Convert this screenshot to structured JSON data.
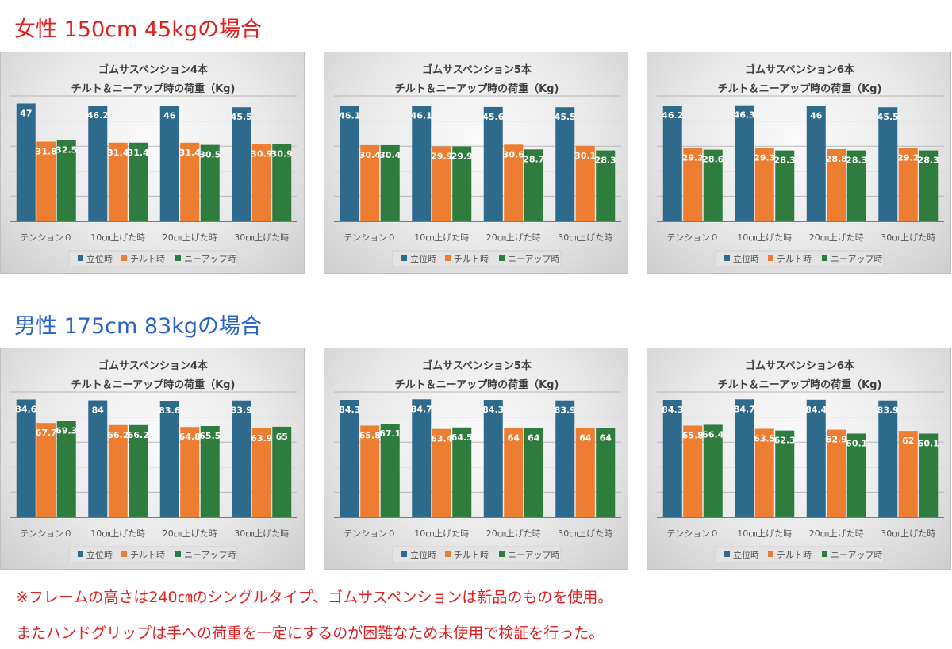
{
  "colors": {
    "standing": "#2e6a8c",
    "tilt": "#ed7d31",
    "knee": "#2e7d3e",
    "female_title": "#e02020",
    "male_title": "#2a62c9",
    "footnote": "#e02020"
  },
  "sections": [
    {
      "title": "女性 150cm 45kgの場合"
    },
    {
      "title": "男性 175cm 83kgの場合"
    }
  ],
  "footnotes": [
    "※フレームの高さは240㎝のシングルタイプ、ゴムサスペンションは新品のものを使用。",
    "またハンドグリップは手への荷重を一定にするのが困難なため未使用で検証を行った。"
  ],
  "chart_data": [
    {
      "type": "bar",
      "title": "ゴムサスペンション4本",
      "subtitle": "チルト＆ニーアップ時の荷重（Kg)",
      "categories": [
        "テンション０",
        "10㎝上げた時",
        "20㎝上げた時",
        "30㎝上げた時"
      ],
      "series": [
        {
          "name": "立位時",
          "values": [
            47,
            46.2,
            46,
            45.5
          ]
        },
        {
          "name": "チルト時",
          "values": [
            31.8,
            31.4,
            31.4,
            30.9
          ]
        },
        {
          "name": "ニーアップ時",
          "values": [
            32.5,
            31.4,
            30.5,
            30.9
          ]
        }
      ],
      "ylim": [
        0,
        50
      ],
      "grid": true,
      "legend": "bottom"
    },
    {
      "type": "bar",
      "title": "ゴムサスペンション5本",
      "subtitle": "チルト＆ニーアップ時の荷重（Kg)",
      "categories": [
        "テンション０",
        "10㎝上げた時",
        "20㎝上げた時",
        "30㎝上げた時"
      ],
      "series": [
        {
          "name": "立位時",
          "values": [
            46.1,
            46.1,
            45.6,
            45.5
          ]
        },
        {
          "name": "チルト時",
          "values": [
            30.4,
            29.9,
            30.6,
            30.1
          ]
        },
        {
          "name": "ニーアップ時",
          "values": [
            30.4,
            29.9,
            28.7,
            28.3
          ]
        }
      ],
      "ylim": [
        0,
        50
      ],
      "grid": true,
      "legend": "bottom"
    },
    {
      "type": "bar",
      "title": "ゴムサスペンション6本",
      "subtitle": "チルト＆ニーアップ時の荷重（Kg)",
      "categories": [
        "テンション０",
        "10㎝上げた時",
        "20㎝上げた時",
        "30㎝上げた時"
      ],
      "series": [
        {
          "name": "立位時",
          "values": [
            46.2,
            46.3,
            46,
            45.5
          ]
        },
        {
          "name": "チルト時",
          "values": [
            29.2,
            29.3,
            28.8,
            29.2
          ]
        },
        {
          "name": "ニーアップ時",
          "values": [
            28.6,
            28.3,
            28.3,
            28.3
          ]
        }
      ],
      "ylim": [
        0,
        50
      ],
      "grid": true,
      "legend": "bottom"
    },
    {
      "type": "bar",
      "title": "ゴムサスペンション4本",
      "subtitle": "チルト＆ニーアップ時の荷重（Kg)",
      "categories": [
        "テンション０",
        "10㎝上げた時",
        "20㎝上げた時",
        "30㎝上げた時"
      ],
      "series": [
        {
          "name": "立位時",
          "values": [
            84.6,
            84,
            83.6,
            83.9
          ]
        },
        {
          "name": "チルト時",
          "values": [
            67.7,
            66.2,
            64.8,
            63.9
          ]
        },
        {
          "name": "ニーアップ時",
          "values": [
            69.3,
            66.2,
            65.5,
            65
          ]
        }
      ],
      "ylim": [
        0,
        90
      ],
      "grid": true,
      "legend": "bottom"
    },
    {
      "type": "bar",
      "title": "ゴムサスペンション5本",
      "subtitle": "チルト＆ニーアップ時の荷重（Kg)",
      "categories": [
        "テンション０",
        "10㎝上げた時",
        "20㎝上げた時",
        "30㎝上げた時"
      ],
      "series": [
        {
          "name": "立位時",
          "values": [
            84.3,
            84.7,
            84.3,
            83.9
          ]
        },
        {
          "name": "チルト時",
          "values": [
            65.8,
            63.4,
            64,
            64
          ]
        },
        {
          "name": "ニーアップ時",
          "values": [
            67.1,
            64.5,
            64,
            64
          ]
        }
      ],
      "ylim": [
        0,
        90
      ],
      "grid": true,
      "legend": "bottom"
    },
    {
      "type": "bar",
      "title": "ゴムサスペンション6本",
      "subtitle": "チルト＆ニーアップ時の荷重（Kg)",
      "categories": [
        "テンション０",
        "10㎝上げた時",
        "20㎝上げた時",
        "30㎝上げた時"
      ],
      "series": [
        {
          "name": "立位時",
          "values": [
            84.3,
            84.7,
            84.4,
            83.9
          ]
        },
        {
          "name": "チルト時",
          "values": [
            65.8,
            63.5,
            62.9,
            62
          ]
        },
        {
          "name": "ニーアップ時",
          "values": [
            66.4,
            62.3,
            60.1,
            60.1
          ]
        }
      ],
      "ylim": [
        0,
        90
      ],
      "grid": true,
      "legend": "bottom"
    }
  ]
}
